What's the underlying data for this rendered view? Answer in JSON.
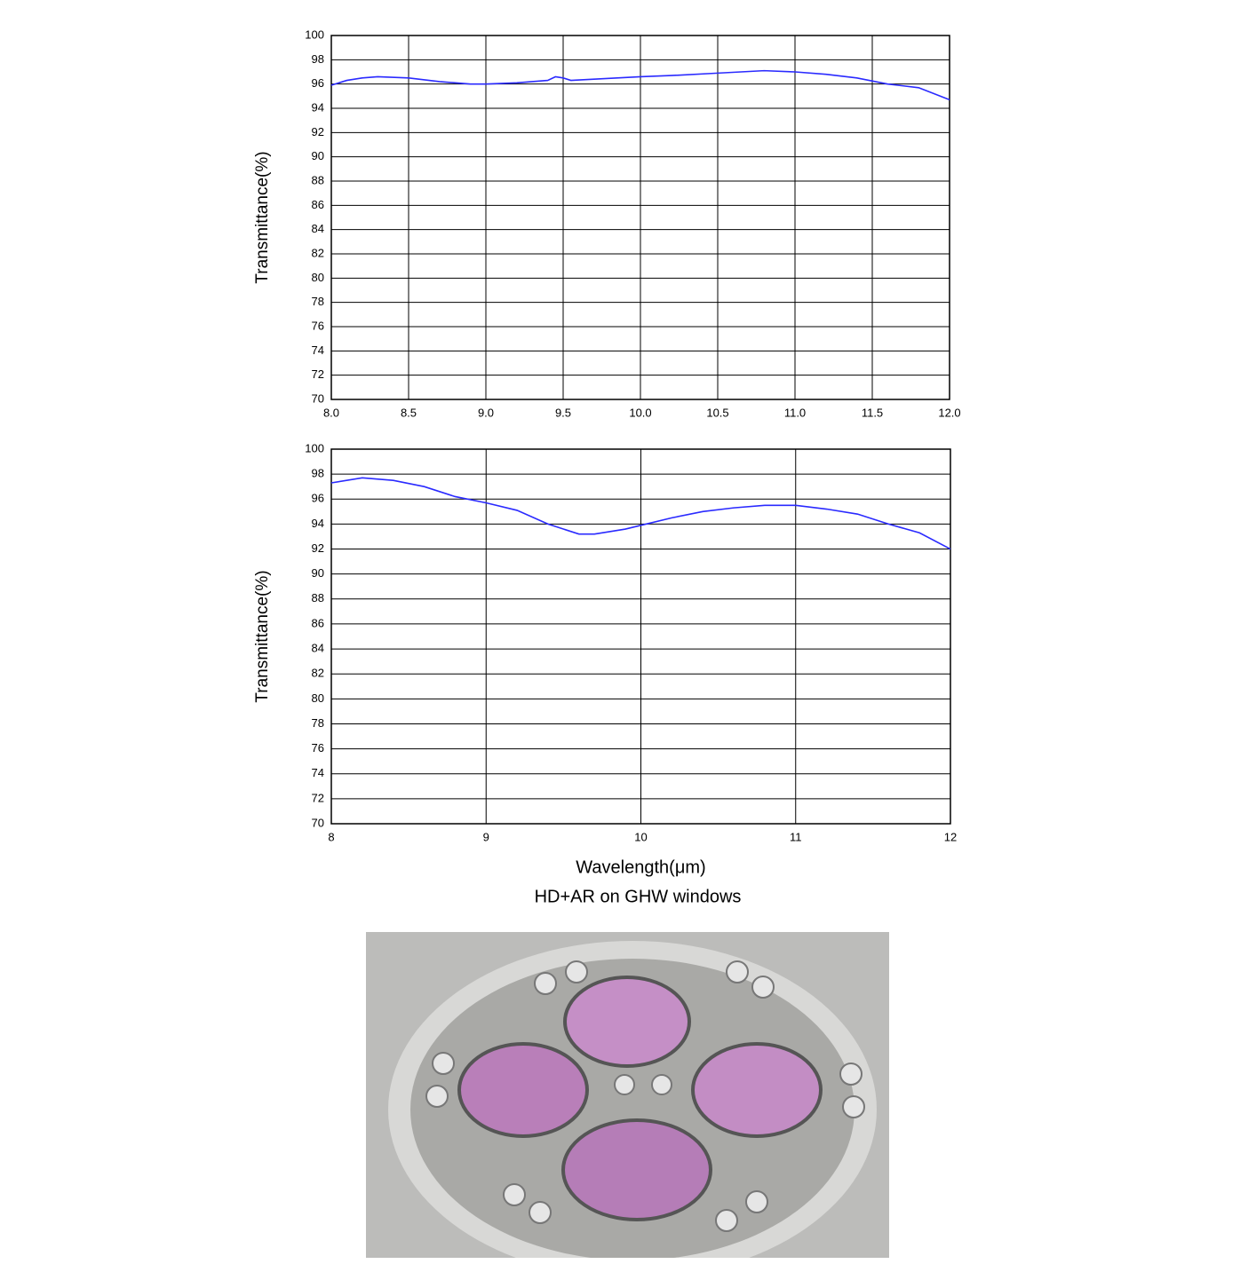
{
  "chart_data": [
    {
      "type": "line",
      "y_label": "Transmittance(%)",
      "xlim": [
        8,
        12
      ],
      "ylim": [
        70,
        100
      ],
      "xticks": [
        {
          "value": 8,
          "label": "8.0"
        },
        8.5,
        {
          "value": 9,
          "label": "9.0"
        },
        9.5,
        {
          "value": 10,
          "label": "10.0"
        },
        10.5,
        {
          "value": 11,
          "label": "11.0"
        },
        11.5,
        {
          "value": 12,
          "label": "12.0"
        }
      ],
      "yticks": [
        70,
        72,
        74,
        76,
        78,
        80,
        82,
        84,
        86,
        88,
        90,
        92,
        94,
        96,
        98,
        100
      ],
      "grid": true,
      "series": [
        {
          "color": "#2a2aff",
          "x": [
            8.0,
            8.1,
            8.2,
            8.3,
            8.5,
            8.7,
            8.9,
            9.0,
            9.2,
            9.4,
            9.45,
            9.5,
            9.55,
            9.7,
            10.0,
            10.2,
            10.5,
            10.8,
            11.0,
            11.2,
            11.4,
            11.6,
            11.8,
            12.0
          ],
          "values": [
            95.9,
            96.3,
            96.5,
            96.6,
            96.5,
            96.2,
            96.0,
            96.0,
            96.1,
            96.3,
            96.6,
            96.5,
            96.3,
            96.4,
            96.6,
            96.7,
            96.9,
            97.1,
            97.0,
            96.8,
            96.5,
            96.0,
            95.7,
            94.7
          ]
        }
      ]
    },
    {
      "type": "line",
      "y_label": "Transmittance(%)",
      "x_label": "Wavelength(μm)",
      "xlim": [
        8,
        12
      ],
      "ylim": [
        70,
        100
      ],
      "xticks": [
        8,
        9,
        10,
        11,
        12
      ],
      "yticks": [
        70,
        72,
        74,
        76,
        78,
        80,
        82,
        84,
        86,
        88,
        90,
        92,
        94,
        96,
        98,
        100
      ],
      "grid": true,
      "series": [
        {
          "color": "#2a2aff",
          "x": [
            8.0,
            8.2,
            8.4,
            8.6,
            8.8,
            9.0,
            9.2,
            9.4,
            9.6,
            9.7,
            9.9,
            10.0,
            10.2,
            10.4,
            10.6,
            10.8,
            10.9,
            11.0,
            11.2,
            11.4,
            11.6,
            11.8,
            12.0
          ],
          "values": [
            97.3,
            97.7,
            97.5,
            97.0,
            96.2,
            95.7,
            95.1,
            94.0,
            93.2,
            93.2,
            93.6,
            93.9,
            94.5,
            95.0,
            95.3,
            95.5,
            95.5,
            95.5,
            95.2,
            94.8,
            94.0,
            93.3,
            92.0
          ]
        }
      ]
    }
  ],
  "caption": "HD+AR on GHW windows"
}
